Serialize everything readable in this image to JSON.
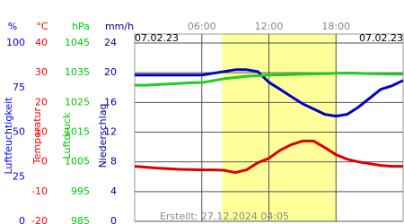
{
  "chart_data": {
    "type": "line",
    "start_label": "07.02.23",
    "end_label": "07.02.23",
    "footer": "Erstellt: 27.12.2024 04:05",
    "xlim": [
      0,
      24
    ],
    "xticks": [
      {
        "value": 6,
        "label": "06:00"
      },
      {
        "value": 12,
        "label": "12:00"
      },
      {
        "value": 18,
        "label": "18:00"
      }
    ],
    "daylight": [
      7.8,
      18.1
    ],
    "axes": [
      {
        "unit": "%",
        "label": "Luftfeuchtigkeit",
        "color": "#0000ff",
        "ylim": [
          0,
          100
        ],
        "yticks": [
          0,
          25,
          50,
          75,
          100
        ]
      },
      {
        "unit": "°C",
        "label": "Temperatur",
        "color": "#ff0000",
        "ylim": [
          -20,
          40
        ],
        "yticks": [
          -20,
          -10,
          0,
          10,
          20,
          30,
          40
        ]
      },
      {
        "unit": "hPa",
        "label": "Luftdruck",
        "color": "#00cc00",
        "ylim": [
          985,
          1045
        ],
        "yticks": [
          985,
          995,
          1005,
          1015,
          1025,
          1035,
          1045
        ]
      },
      {
        "unit": "mm/h",
        "label": "Niederschlag",
        "color": "#000099",
        "ylim": [
          0,
          24
        ],
        "yticks": [
          0,
          4,
          8,
          12,
          16,
          20,
          24
        ],
        "grid": true
      }
    ],
    "x": [
      0,
      1,
      2,
      3,
      4,
      5,
      6,
      7,
      8,
      9,
      10,
      11,
      12,
      13,
      14,
      15,
      16,
      17,
      18,
      19,
      20,
      21,
      22,
      23,
      24
    ],
    "series": [
      {
        "axis": 0,
        "color": "#0000cc",
        "values": [
          82,
          82,
          82,
          82,
          82,
          82,
          82,
          83,
          84,
          85,
          85,
          84,
          78,
          74,
          70,
          66,
          63,
          60,
          59,
          60,
          64,
          69,
          74,
          76,
          79
        ]
      },
      {
        "axis": 1,
        "color": "#dd0000",
        "values": [
          -1.5,
          -1.8,
          -2.1,
          -2.3,
          -2.5,
          -2.6,
          -2.7,
          -2.7,
          -2.8,
          -3.6,
          -2.7,
          -0.3,
          1.2,
          3.9,
          5.8,
          7,
          7,
          4.8,
          2.4,
          0.9,
          0,
          -0.6,
          -1.2,
          -1.5,
          -1.5
        ]
      },
      {
        "axis": 2,
        "color": "#22cc22",
        "values": [
          1030.8,
          1030.8,
          1031,
          1031.2,
          1031.4,
          1031.6,
          1031.7,
          1032.3,
          1033,
          1033.4,
          1033.8,
          1034,
          1034.2,
          1034.3,
          1034.4,
          1034.5,
          1034.6,
          1034.7,
          1034.8,
          1034.9,
          1034.8,
          1034.7,
          1034.6,
          1034.5,
          1034.5
        ]
      }
    ]
  }
}
